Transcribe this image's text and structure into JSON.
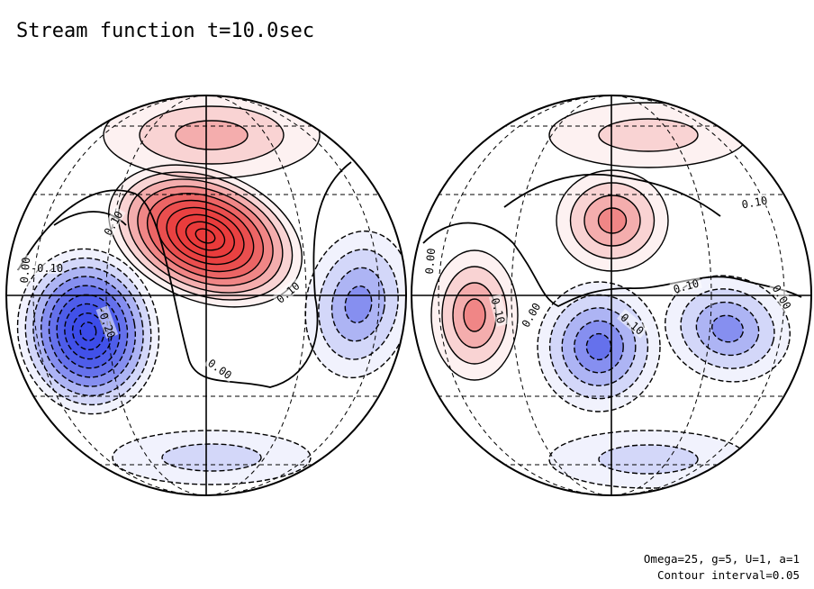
{
  "title": "Stream function t=10.0sec",
  "footer": {
    "parameters": "Omega=25, g=5, U=1, a=1",
    "contour_interval": "Contour interval=0.05"
  },
  "colors": {
    "positive": "#e83a3a",
    "negative": "#3a4ae8",
    "line": "#000000",
    "background": "#ffffff"
  },
  "chart_data": {
    "type": "heatmap",
    "projection": "orthographic",
    "panels": [
      {
        "name": "left hemisphere",
        "contour_labels": [
          "0.10",
          "0.00",
          "-0.10",
          "-0.20",
          "0.10",
          "0.00"
        ],
        "features": [
          {
            "sign": "positive",
            "peak": 0.5
          },
          {
            "sign": "negative",
            "peak": -0.45
          },
          {
            "sign": "negative",
            "peak": -0.2
          },
          {
            "sign": "positive",
            "peak": 0.15
          },
          {
            "sign": "negative",
            "peak": -0.1
          }
        ]
      },
      {
        "name": "right hemisphere",
        "contour_labels": [
          "0.00",
          "0.10",
          "0.00",
          "0.10",
          "0.10",
          "0.10",
          "0.00"
        ],
        "features": [
          {
            "sign": "positive",
            "peak": 0.2
          },
          {
            "sign": "positive",
            "peak": 0.2
          },
          {
            "sign": "negative",
            "peak": -0.25
          },
          {
            "sign": "negative",
            "peak": -0.2
          },
          {
            "sign": "positive",
            "peak": 0.1
          },
          {
            "sign": "negative",
            "peak": -0.1
          }
        ]
      }
    ],
    "contour_interval": 0.05
  }
}
